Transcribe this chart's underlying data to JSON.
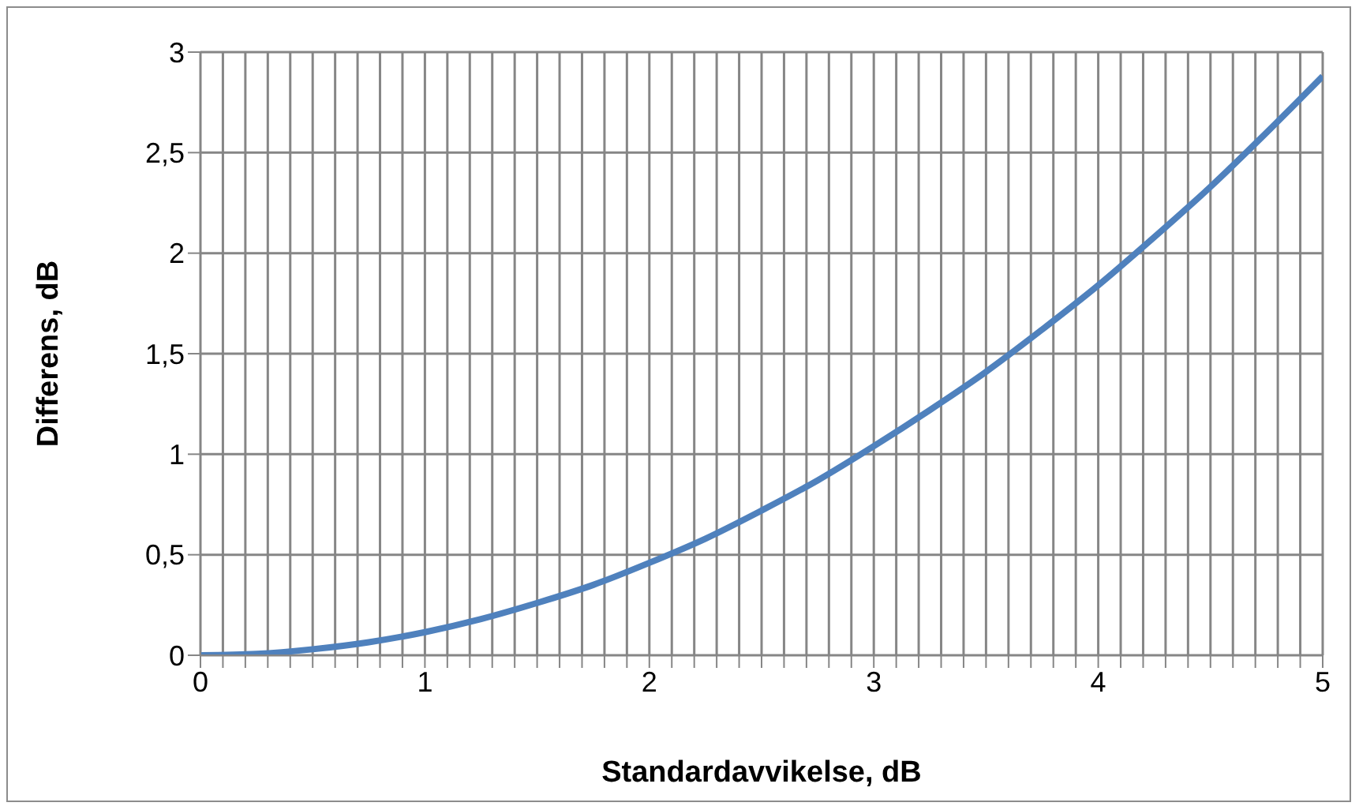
{
  "chart_data": {
    "type": "line",
    "xlabel": "Standardavvikelse, dB",
    "ylabel": "Differens, dB",
    "x": [
      0,
      0.25,
      0.5,
      0.75,
      1,
      1.25,
      1.5,
      1.75,
      2,
      2.25,
      2.5,
      2.75,
      3,
      3.25,
      3.5,
      3.75,
      4,
      4.25,
      4.5,
      4.75,
      5
    ],
    "series": [
      {
        "color": "#4f81bd",
        "values": [
          0,
          0.007,
          0.03,
          0.065,
          0.115,
          0.18,
          0.26,
          0.35,
          0.46,
          0.58,
          0.72,
          0.87,
          1.04,
          1.22,
          1.41,
          1.62,
          1.84,
          2.08,
          2.33,
          2.6,
          2.88
        ]
      }
    ],
    "xlim": [
      0,
      5
    ],
    "xticks": [
      0,
      {
        "value": 0.1,
        "label": null
      },
      {
        "value": 0.2,
        "label": null
      },
      {
        "value": 0.3,
        "label": null
      },
      {
        "value": 0.4,
        "label": null
      },
      {
        "value": 0.5,
        "label": null
      },
      {
        "value": 0.6,
        "label": null
      },
      {
        "value": 0.7,
        "label": null
      },
      {
        "value": 0.8,
        "label": null
      },
      {
        "value": 0.9,
        "label": null
      },
      1,
      {
        "value": 1.1,
        "label": null
      },
      {
        "value": 1.2,
        "label": null
      },
      {
        "value": 1.3,
        "label": null
      },
      {
        "value": 1.4,
        "label": null
      },
      {
        "value": 1.5,
        "label": null
      },
      {
        "value": 1.6,
        "label": null
      },
      {
        "value": 1.7,
        "label": null
      },
      {
        "value": 1.8,
        "label": null
      },
      {
        "value": 1.9,
        "label": null
      },
      2,
      {
        "value": 2.1,
        "label": null
      },
      {
        "value": 2.2,
        "label": null
      },
      {
        "value": 2.3,
        "label": null
      },
      {
        "value": 2.4,
        "label": null
      },
      {
        "value": 2.5,
        "label": null
      },
      {
        "value": 2.6,
        "label": null
      },
      {
        "value": 2.7,
        "label": null
      },
      {
        "value": 2.8,
        "label": null
      },
      {
        "value": 2.9,
        "label": null
      },
      3,
      {
        "value": 3.1,
        "label": null
      },
      {
        "value": 3.2,
        "label": null
      },
      {
        "value": 3.3,
        "label": null
      },
      {
        "value": 3.4,
        "label": null
      },
      {
        "value": 3.5,
        "label": null
      },
      {
        "value": 3.6,
        "label": null
      },
      {
        "value": 3.7,
        "label": null
      },
      {
        "value": 3.8,
        "label": null
      },
      {
        "value": 3.9,
        "label": null
      },
      4,
      {
        "value": 4.1,
        "label": null
      },
      {
        "value": 4.2,
        "label": null
      },
      {
        "value": 4.3,
        "label": null
      },
      {
        "value": 4.4,
        "label": null
      },
      {
        "value": 4.5,
        "label": null
      },
      {
        "value": 4.6,
        "label": null
      },
      {
        "value": 4.7,
        "label": null
      },
      {
        "value": 4.8,
        "label": null
      },
      {
        "value": 4.9,
        "label": null
      },
      5
    ],
    "ylim": [
      0,
      3
    ],
    "yticks": [
      0,
      {
        "value": 0.5,
        "label": "0,5"
      },
      1,
      {
        "value": 1.5,
        "label": "1,5"
      },
      2,
      {
        "value": 2.5,
        "label": "2,5"
      },
      3
    ],
    "grid": true
  }
}
